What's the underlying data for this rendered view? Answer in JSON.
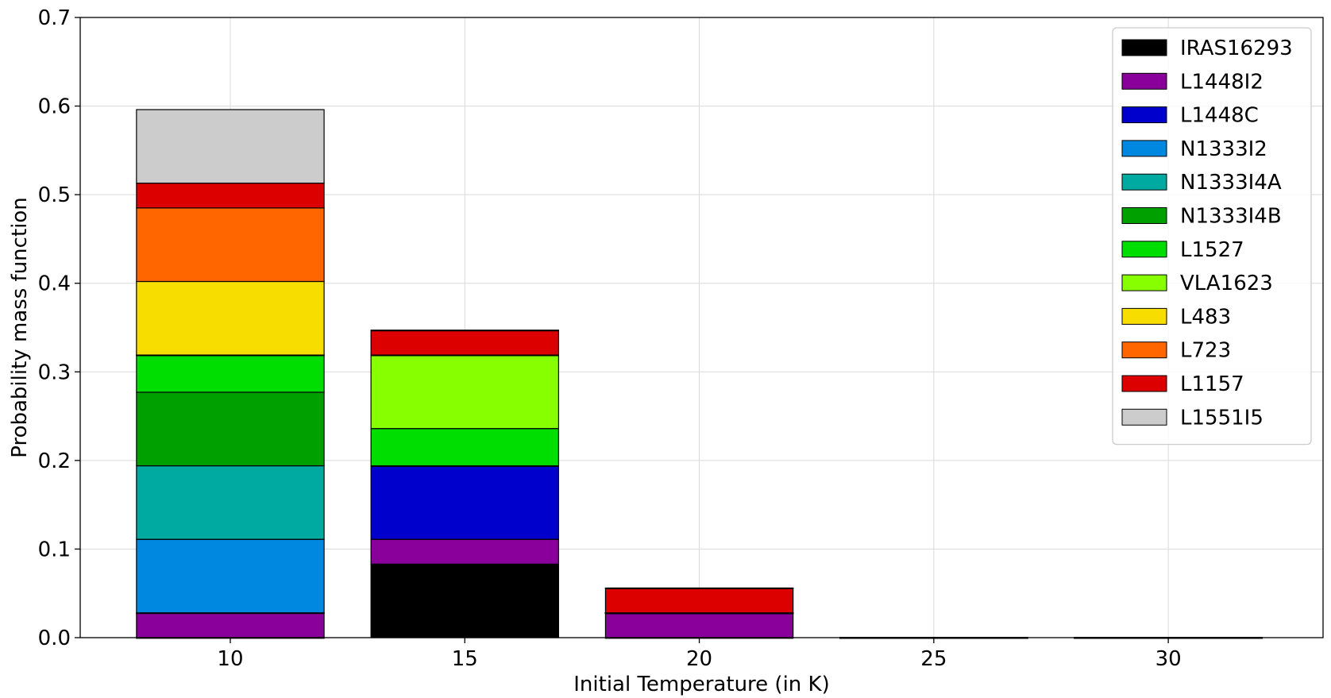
{
  "chart_data": {
    "type": "bar",
    "stacked": true,
    "categories": [
      "10",
      "15",
      "20",
      "25",
      "30"
    ],
    "xlabel": "Initial Temperature (in K)",
    "ylabel": "Probability mass function",
    "ylim": [
      0,
      0.7
    ],
    "yticks": [
      "0.0",
      "0.1",
      "0.2",
      "0.3",
      "0.4",
      "0.5",
      "0.6",
      "0.7"
    ],
    "grid": true,
    "legend_position": "top-right",
    "series": [
      {
        "name": "IRAS16293",
        "color": "#000000",
        "values": [
          0,
          0.083,
          0,
          0,
          0
        ]
      },
      {
        "name": "L1448I2",
        "color": "#880099",
        "values": [
          0.028,
          0.028,
          0.028,
          0,
          0
        ]
      },
      {
        "name": "L1448C",
        "color": "#0000cc",
        "values": [
          0,
          0.083,
          0,
          0,
          0
        ]
      },
      {
        "name": "N1333I2",
        "color": "#0088e0",
        "values": [
          0.083,
          0,
          0,
          0,
          0
        ]
      },
      {
        "name": "N1333I4A",
        "color": "#00aaa0",
        "values": [
          0.083,
          0,
          0,
          0,
          0
        ]
      },
      {
        "name": "N1333I4B",
        "color": "#00a000",
        "values": [
          0.083,
          0,
          0,
          0,
          0
        ]
      },
      {
        "name": "L1527",
        "color": "#00dd00",
        "values": [
          0.042,
          0.042,
          0,
          0,
          0
        ]
      },
      {
        "name": "VLA1623",
        "color": "#88ff00",
        "values": [
          0,
          0.083,
          0,
          0,
          0
        ]
      },
      {
        "name": "L483",
        "color": "#f8dd00",
        "values": [
          0.083,
          0,
          0,
          0,
          0
        ]
      },
      {
        "name": "L723",
        "color": "#ff6600",
        "values": [
          0.083,
          0,
          0,
          0,
          0
        ]
      },
      {
        "name": "L1157",
        "color": "#dd0000",
        "values": [
          0.028,
          0.028,
          0.028,
          0,
          0
        ]
      },
      {
        "name": "L1551I5",
        "color": "#cccccc",
        "values": [
          0.083,
          0,
          0,
          0,
          0
        ]
      }
    ]
  }
}
